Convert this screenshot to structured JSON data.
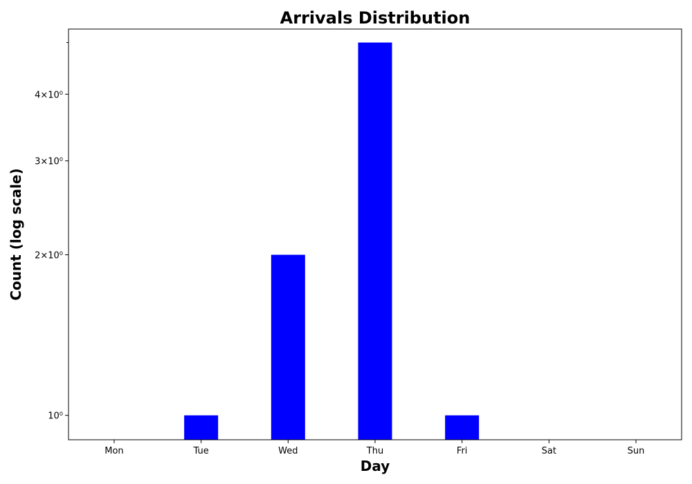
{
  "chart_data": {
    "type": "bar",
    "title": "Arrivals Distribution",
    "xlabel": "Day",
    "ylabel": "Count (log scale)",
    "yscale": "log",
    "categories": [
      "Mon",
      "Tue",
      "Wed",
      "Thu",
      "Fri",
      "Sat",
      "Sun"
    ],
    "values": [
      0,
      1,
      2,
      5,
      1,
      0,
      0
    ],
    "ylim": [
      0.9,
      5.3
    ],
    "yticks": [
      {
        "value": 1,
        "label": "10⁰"
      },
      {
        "value": 2,
        "label": "2×10⁰"
      },
      {
        "value": 3,
        "label": "3×10⁰"
      },
      {
        "value": 4,
        "label": "4×10⁰"
      }
    ],
    "yminor_ticks": [
      5
    ],
    "bar_color": "#0000ff",
    "grid": false,
    "legend": "none"
  }
}
